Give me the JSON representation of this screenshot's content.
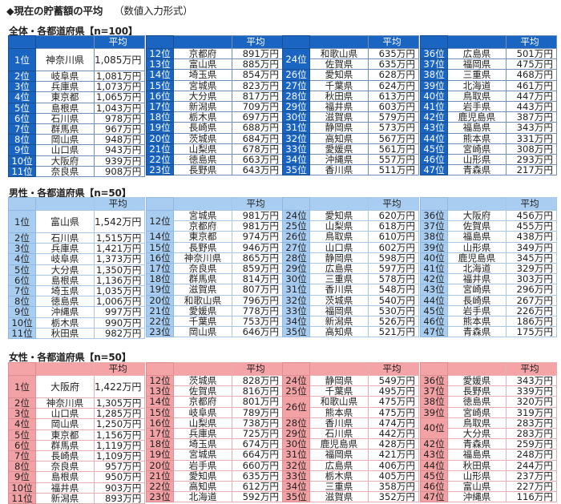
{
  "title": "◆現在の貯蓄額の平均",
  "subtitle": "（数値入力形式）",
  "header_avg": "平均",
  "sections": [
    {
      "heading": "全体・各都道府県【n=100】",
      "theme": "blue",
      "tables": [
        {
          "rows": [
            {
              "rank": "1位",
              "pref": "神奈川県",
              "value": "1,085万円",
              "big": true
            },
            {
              "rank": "2位",
              "pref": "岐阜県",
              "value": "1,081万円"
            },
            {
              "rank": "3位",
              "pref": "兵庫県",
              "value": "1,073万円"
            },
            {
              "rank": "4位",
              "pref": "東京都",
              "value": "1,065万円"
            },
            {
              "rank": "5位",
              "pref": "島根県",
              "value": "1,043万円"
            },
            {
              "rank": "6位",
              "pref": "石川県",
              "value": "978万円"
            },
            {
              "rank": "7位",
              "pref": "群馬県",
              "value": "967万円"
            },
            {
              "rank": "8位",
              "pref": "岡山県",
              "value": "948万円"
            },
            {
              "rank": "9位",
              "pref": "山口県",
              "value": "943万円"
            },
            {
              "rank": "10位",
              "pref": "大阪府",
              "value": "939万円"
            },
            {
              "rank": "11位",
              "pref": "奈良県",
              "value": "908万円"
            }
          ]
        },
        {
          "rows": [
            {
              "rank": "12位",
              "pref": "京都府",
              "value": "891万円"
            },
            {
              "rank": "13位",
              "pref": "富山県",
              "value": "885万円"
            },
            {
              "rank": "14位",
              "pref": "埼玉県",
              "value": "854万円"
            },
            {
              "rank": "15位",
              "pref": "宮城県",
              "value": "823万円"
            },
            {
              "rank": "16位",
              "pref": "大分県",
              "value": "817万円"
            },
            {
              "rank": "17位",
              "pref": "新潟県",
              "value": "709万円"
            },
            {
              "rank": "18位",
              "pref": "栃木県",
              "value": "697万円"
            },
            {
              "rank": "19位",
              "pref": "長崎県",
              "value": "688万円"
            },
            {
              "rank": "20位",
              "pref": "茨城県",
              "value": "684万円"
            },
            {
              "rank": "21位",
              "pref": "山梨県",
              "value": "678万円"
            },
            {
              "rank": "22位",
              "pref": "徳島県",
              "value": "663万円"
            },
            {
              "rank": "23位",
              "pref": "長野県",
              "value": "643万円"
            }
          ]
        },
        {
          "rows": [
            {
              "rank": "24位",
              "pref": "和歌山県",
              "value": "635万円",
              "span": 2
            },
            {
              "rank": "",
              "pref": "佐賀県",
              "value": "635万円",
              "merged": true
            },
            {
              "rank": "26位",
              "pref": "愛知県",
              "value": "628万円"
            },
            {
              "rank": "27位",
              "pref": "千葉県",
              "value": "624万円"
            },
            {
              "rank": "28位",
              "pref": "秋田県",
              "value": "613万円"
            },
            {
              "rank": "29位",
              "pref": "福井県",
              "value": "603万円"
            },
            {
              "rank": "30位",
              "pref": "滋賀県",
              "value": "579万円"
            },
            {
              "rank": "31位",
              "pref": "静岡県",
              "value": "573万円"
            },
            {
              "rank": "32位",
              "pref": "高知県",
              "value": "567万円"
            },
            {
              "rank": "33位",
              "pref": "愛媛県",
              "value": "561万円"
            },
            {
              "rank": "34位",
              "pref": "沖縄県",
              "value": "557万円"
            },
            {
              "rank": "35位",
              "pref": "香川県",
              "value": "511万円"
            }
          ]
        },
        {
          "rows": [
            {
              "rank": "36位",
              "pref": "広島県",
              "value": "501万円"
            },
            {
              "rank": "37位",
              "pref": "福岡県",
              "value": "475万円"
            },
            {
              "rank": "38位",
              "pref": "三重県",
              "value": "468万円"
            },
            {
              "rank": "39位",
              "pref": "北海道",
              "value": "461万円"
            },
            {
              "rank": "40位",
              "pref": "鳥取県",
              "value": "447万円"
            },
            {
              "rank": "41位",
              "pref": "岩手県",
              "value": "443万円"
            },
            {
              "rank": "42位",
              "pref": "鹿児島県",
              "value": "387万円"
            },
            {
              "rank": "43位",
              "pref": "福島県",
              "value": "343万円"
            },
            {
              "rank": "44位",
              "pref": "熊本県",
              "value": "331万円"
            },
            {
              "rank": "45位",
              "pref": "宮崎県",
              "value": "308万円"
            },
            {
              "rank": "46位",
              "pref": "山形県",
              "value": "293万円"
            },
            {
              "rank": "47位",
              "pref": "青森県",
              "value": "217万円"
            }
          ]
        }
      ]
    },
    {
      "heading": "男性・各都道府県【n=50】",
      "theme": "lblue",
      "tables": [
        {
          "rows": [
            {
              "rank": "1位",
              "pref": "富山県",
              "value": "1,542万円",
              "big": true
            },
            {
              "rank": "2位",
              "pref": "石川県",
              "value": "1,515万円"
            },
            {
              "rank": "3位",
              "pref": "兵庫県",
              "value": "1,421万円"
            },
            {
              "rank": "4位",
              "pref": "岐阜県",
              "value": "1,373万円"
            },
            {
              "rank": "5位",
              "pref": "大分県",
              "value": "1,350万円"
            },
            {
              "rank": "6位",
              "pref": "島根県",
              "value": "1,136万円"
            },
            {
              "rank": "7位",
              "pref": "埼玉県",
              "value": "1,035万円"
            },
            {
              "rank": "8位",
              "pref": "徳島県",
              "value": "1,006万円"
            },
            {
              "rank": "9位",
              "pref": "沖縄県",
              "value": "997万円"
            },
            {
              "rank": "10位",
              "pref": "栃木県",
              "value": "990万円"
            },
            {
              "rank": "11位",
              "pref": "秋田県",
              "value": "982万円"
            }
          ]
        },
        {
          "rows": [
            {
              "rank": "12位",
              "pref": "宮城県",
              "value": "981万円",
              "span": 2
            },
            {
              "rank": "",
              "pref": "京都府",
              "value": "981万円",
              "merged": true
            },
            {
              "rank": "14位",
              "pref": "東京都",
              "value": "974万円"
            },
            {
              "rank": "15位",
              "pref": "長野県",
              "value": "946万円"
            },
            {
              "rank": "16位",
              "pref": "神奈川県",
              "value": "865万円"
            },
            {
              "rank": "17位",
              "pref": "奈良県",
              "value": "859万円"
            },
            {
              "rank": "18位",
              "pref": "群馬県",
              "value": "814万円"
            },
            {
              "rank": "19位",
              "pref": "滋賀県",
              "value": "807万円"
            },
            {
              "rank": "20位",
              "pref": "和歌山県",
              "value": "796万円"
            },
            {
              "rank": "21位",
              "pref": "愛媛県",
              "value": "778万円"
            },
            {
              "rank": "22位",
              "pref": "千葉県",
              "value": "753万円"
            },
            {
              "rank": "23位",
              "pref": "岡山県",
              "value": "646万円"
            }
          ]
        },
        {
          "rows": [
            {
              "rank": "24位",
              "pref": "愛知県",
              "value": "620万円"
            },
            {
              "rank": "25位",
              "pref": "山梨県",
              "value": "618万円"
            },
            {
              "rank": "26位",
              "pref": "鳥取県",
              "value": "610万円"
            },
            {
              "rank": "27位",
              "pref": "山口県",
              "value": "602万円"
            },
            {
              "rank": "28位",
              "pref": "静岡県",
              "value": "598万円"
            },
            {
              "rank": "29位",
              "pref": "広島県",
              "value": "597万円"
            },
            {
              "rank": "30位",
              "pref": "三重県",
              "value": "578万円"
            },
            {
              "rank": "31位",
              "pref": "香川県",
              "value": "548万円"
            },
            {
              "rank": "32位",
              "pref": "茨城県",
              "value": "540万円"
            },
            {
              "rank": "33位",
              "pref": "福岡県",
              "value": "530万円"
            },
            {
              "rank": "34位",
              "pref": "新潟県",
              "value": "526万円"
            },
            {
              "rank": "35位",
              "pref": "高知県",
              "value": "521万円"
            }
          ]
        },
        {
          "rows": [
            {
              "rank": "36位",
              "pref": "大阪府",
              "value": "456万円"
            },
            {
              "rank": "37位",
              "pref": "佐賀県",
              "value": "455万円"
            },
            {
              "rank": "38位",
              "pref": "福島県",
              "value": "438万円"
            },
            {
              "rank": "39位",
              "pref": "山形県",
              "value": "349万円"
            },
            {
              "rank": "40位",
              "pref": "鹿児島県",
              "value": "345万円"
            },
            {
              "rank": "41位",
              "pref": "北海道",
              "value": "329万円"
            },
            {
              "rank": "42位",
              "pref": "福井県",
              "value": "303万円"
            },
            {
              "rank": "43位",
              "pref": "宮崎県",
              "value": "296万円"
            },
            {
              "rank": "44位",
              "pref": "長崎県",
              "value": "267万円"
            },
            {
              "rank": "45位",
              "pref": "岩手県",
              "value": "226万円"
            },
            {
              "rank": "46位",
              "pref": "熊本県",
              "value": "186万円"
            },
            {
              "rank": "47位",
              "pref": "青森県",
              "value": "175万円"
            }
          ]
        }
      ]
    },
    {
      "heading": "女性・各都道府県【n=50】",
      "theme": "pink",
      "tables": [
        {
          "rows": [
            {
              "rank": "1位",
              "pref": "大阪府",
              "value": "1,422万円",
              "big": true
            },
            {
              "rank": "2位",
              "pref": "神奈川県",
              "value": "1,305万円"
            },
            {
              "rank": "3位",
              "pref": "山口県",
              "value": "1,285万円"
            },
            {
              "rank": "4位",
              "pref": "岡山県",
              "value": "1,250万円"
            },
            {
              "rank": "5位",
              "pref": "東京都",
              "value": "1,156万円"
            },
            {
              "rank": "6位",
              "pref": "群馬県",
              "value": "1,119万円"
            },
            {
              "rank": "7位",
              "pref": "長崎県",
              "value": "1,109万円"
            },
            {
              "rank": "8位",
              "pref": "奈良県",
              "value": "957万円"
            },
            {
              "rank": "9位",
              "pref": "島根県",
              "value": "950万円"
            },
            {
              "rank": "10位",
              "pref": "福井県",
              "value": "903万円"
            },
            {
              "rank": "11位",
              "pref": "新潟県",
              "value": "893万円"
            }
          ]
        },
        {
          "rows": [
            {
              "rank": "12位",
              "pref": "茨城県",
              "value": "828万円"
            },
            {
              "rank": "13位",
              "pref": "佐賀県",
              "value": "816万円"
            },
            {
              "rank": "14位",
              "pref": "京都府",
              "value": "801万円"
            },
            {
              "rank": "15位",
              "pref": "岐阜県",
              "value": "789万円"
            },
            {
              "rank": "16位",
              "pref": "山梨県",
              "value": "738万円"
            },
            {
              "rank": "17位",
              "pref": "兵庫県",
              "value": "725万円"
            },
            {
              "rank": "18位",
              "pref": "埼玉県",
              "value": "674万円"
            },
            {
              "rank": "19位",
              "pref": "宮城県",
              "value": "664万円"
            },
            {
              "rank": "20位",
              "pref": "岩手県",
              "value": "660万円"
            },
            {
              "rank": "21位",
              "pref": "愛知県",
              "value": "635万円"
            },
            {
              "rank": "22位",
              "pref": "高知県",
              "value": "612万円"
            },
            {
              "rank": "23位",
              "pref": "北海道",
              "value": "592万円"
            }
          ]
        },
        {
          "rows": [
            {
              "rank": "24位",
              "pref": "静岡県",
              "value": "549万円"
            },
            {
              "rank": "25位",
              "pref": "千葉県",
              "value": "495万円"
            },
            {
              "rank": "26位",
              "pref": "和歌山県",
              "value": "475万円",
              "span": 2
            },
            {
              "rank": "",
              "pref": "熊本県",
              "value": "475万円",
              "merged": true
            },
            {
              "rank": "28位",
              "pref": "香川県",
              "value": "474万円"
            },
            {
              "rank": "29位",
              "pref": "石川県",
              "value": "442万円"
            },
            {
              "rank": "30位",
              "pref": "鹿児島県",
              "value": "428万円"
            },
            {
              "rank": "31位",
              "pref": "福岡県",
              "value": "421万円"
            },
            {
              "rank": "32位",
              "pref": "広島県",
              "value": "406万円"
            },
            {
              "rank": "33位",
              "pref": "栃木県",
              "value": "405万円"
            },
            {
              "rank": "34位",
              "pref": "三重県",
              "value": "358万円"
            },
            {
              "rank": "35位",
              "pref": "滋賀県",
              "value": "352万円"
            }
          ]
        },
        {
          "rows": [
            {
              "rank": "36位",
              "pref": "愛媛県",
              "value": "343万円"
            },
            {
              "rank": "37位",
              "pref": "長野県",
              "value": "339万円"
            },
            {
              "rank": "38位",
              "pref": "徳島県",
              "value": "320万円"
            },
            {
              "rank": "39位",
              "pref": "宮崎県",
              "value": "319万円"
            },
            {
              "rank": "40位",
              "pref": "鳥取県",
              "value": "283万円",
              "span": 2
            },
            {
              "rank": "",
              "pref": "大分県",
              "value": "283万円",
              "merged": true
            },
            {
              "rank": "42位",
              "pref": "青森県",
              "value": "259万円"
            },
            {
              "rank": "43位",
              "pref": "福島県",
              "value": "248万円"
            },
            {
              "rank": "44位",
              "pref": "秋田県",
              "value": "244万円"
            },
            {
              "rank": "45位",
              "pref": "山形県",
              "value": "237万円"
            },
            {
              "rank": "46位",
              "pref": "富山県",
              "value": "227万円"
            },
            {
              "rank": "47位",
              "pref": "沖縄県",
              "value": "116万円"
            }
          ]
        }
      ]
    }
  ]
}
